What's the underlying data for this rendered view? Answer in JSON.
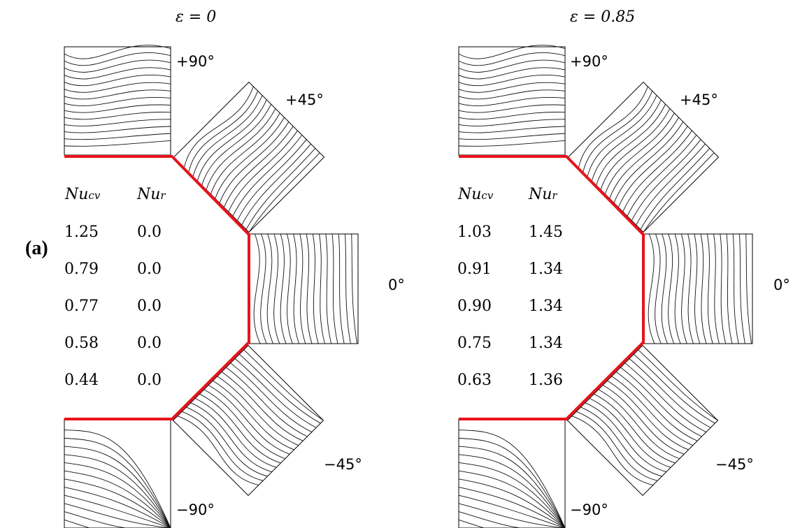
{
  "panel_label": "(a)",
  "angles": [
    "+90°",
    "+45°",
    "0°",
    "−45°",
    "−90°"
  ],
  "columns_header": {
    "cv": "Nu",
    "cv_sub": "cv",
    "r": "Nu",
    "r_sub": "r"
  },
  "left": {
    "epsilon_label": "ε = 0",
    "nu_cv": [
      "1.25",
      "0.79",
      "0.77",
      "0.58",
      "0.44"
    ],
    "nu_r": [
      "0.0",
      "0.0",
      "0.0",
      "0.0",
      "0.0"
    ]
  },
  "right": {
    "epsilon_label": "ε = 0.85",
    "nu_cv": [
      "1.03",
      "0.91",
      "0.90",
      "0.75",
      "0.63"
    ],
    "nu_r": [
      "1.45",
      "1.34",
      "1.34",
      "1.34",
      "1.36"
    ]
  },
  "colors": {
    "hot_wall": "#e8131b",
    "cold_start": "#2f72c8",
    "mid": "#9b59b6"
  }
}
